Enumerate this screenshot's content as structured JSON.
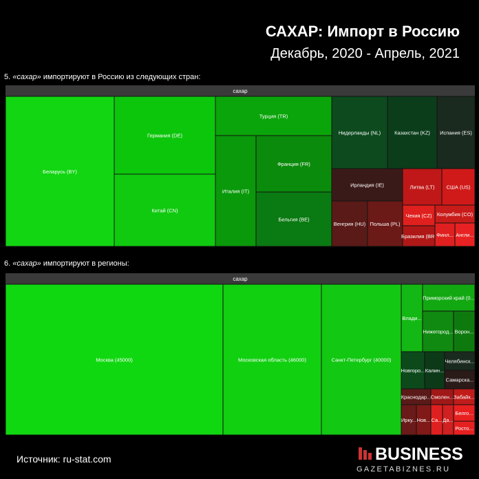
{
  "header": {
    "title": "САХАР: Импорт в Россию",
    "subtitle": "Декабрь, 2020 - Апрель, 2021"
  },
  "sections": [
    {
      "caption": {
        "number": "5.",
        "keyword": "«сахар»",
        "text": "импортируют в Россию из следующих стран:"
      },
      "group": "сахар",
      "tiles": [
        "Беларусь (BY)",
        "Германия (DE)",
        "Китай (CN)",
        "Турция (TR)",
        "Италия (IT)",
        "Франция (FR)",
        "Бельгия (BE)",
        "Нидерланды (NL)",
        "Казахстан (KZ)",
        "Испания (ES)",
        "Ирландия (IE)",
        "Венгрия (HU)",
        "Польша (PL)",
        "Литва (LT)",
        "США (US)",
        "Чехия (CZ)",
        "Колумбия (CO)",
        "Бразилия (BR)",
        "Финл...",
        "Англи..."
      ]
    },
    {
      "caption": {
        "number": "6.",
        "keyword": "«сахар»",
        "text": "импортируют в регионы:"
      },
      "group": "сахар",
      "tiles": [
        "Москва (45000)",
        "Московская область (46000)",
        "Санкт-Петербург (40000)",
        "Влади...",
        "Приморский край (0...",
        "Нижегород...",
        "Ворон...",
        "Новгоро...",
        "Калин...",
        "Челябинск...",
        "Самарска...",
        "Краснодар...",
        "Смолен...",
        "Забайк...",
        "Ирку...",
        "Нов...",
        "Са...",
        "Да...",
        "Белго...",
        "Росто..."
      ]
    }
  ],
  "footer": {
    "source": "Источник: ru-stat.com",
    "logo": "BUSINESS",
    "site": "GAZETABIZNES.RU"
  }
}
